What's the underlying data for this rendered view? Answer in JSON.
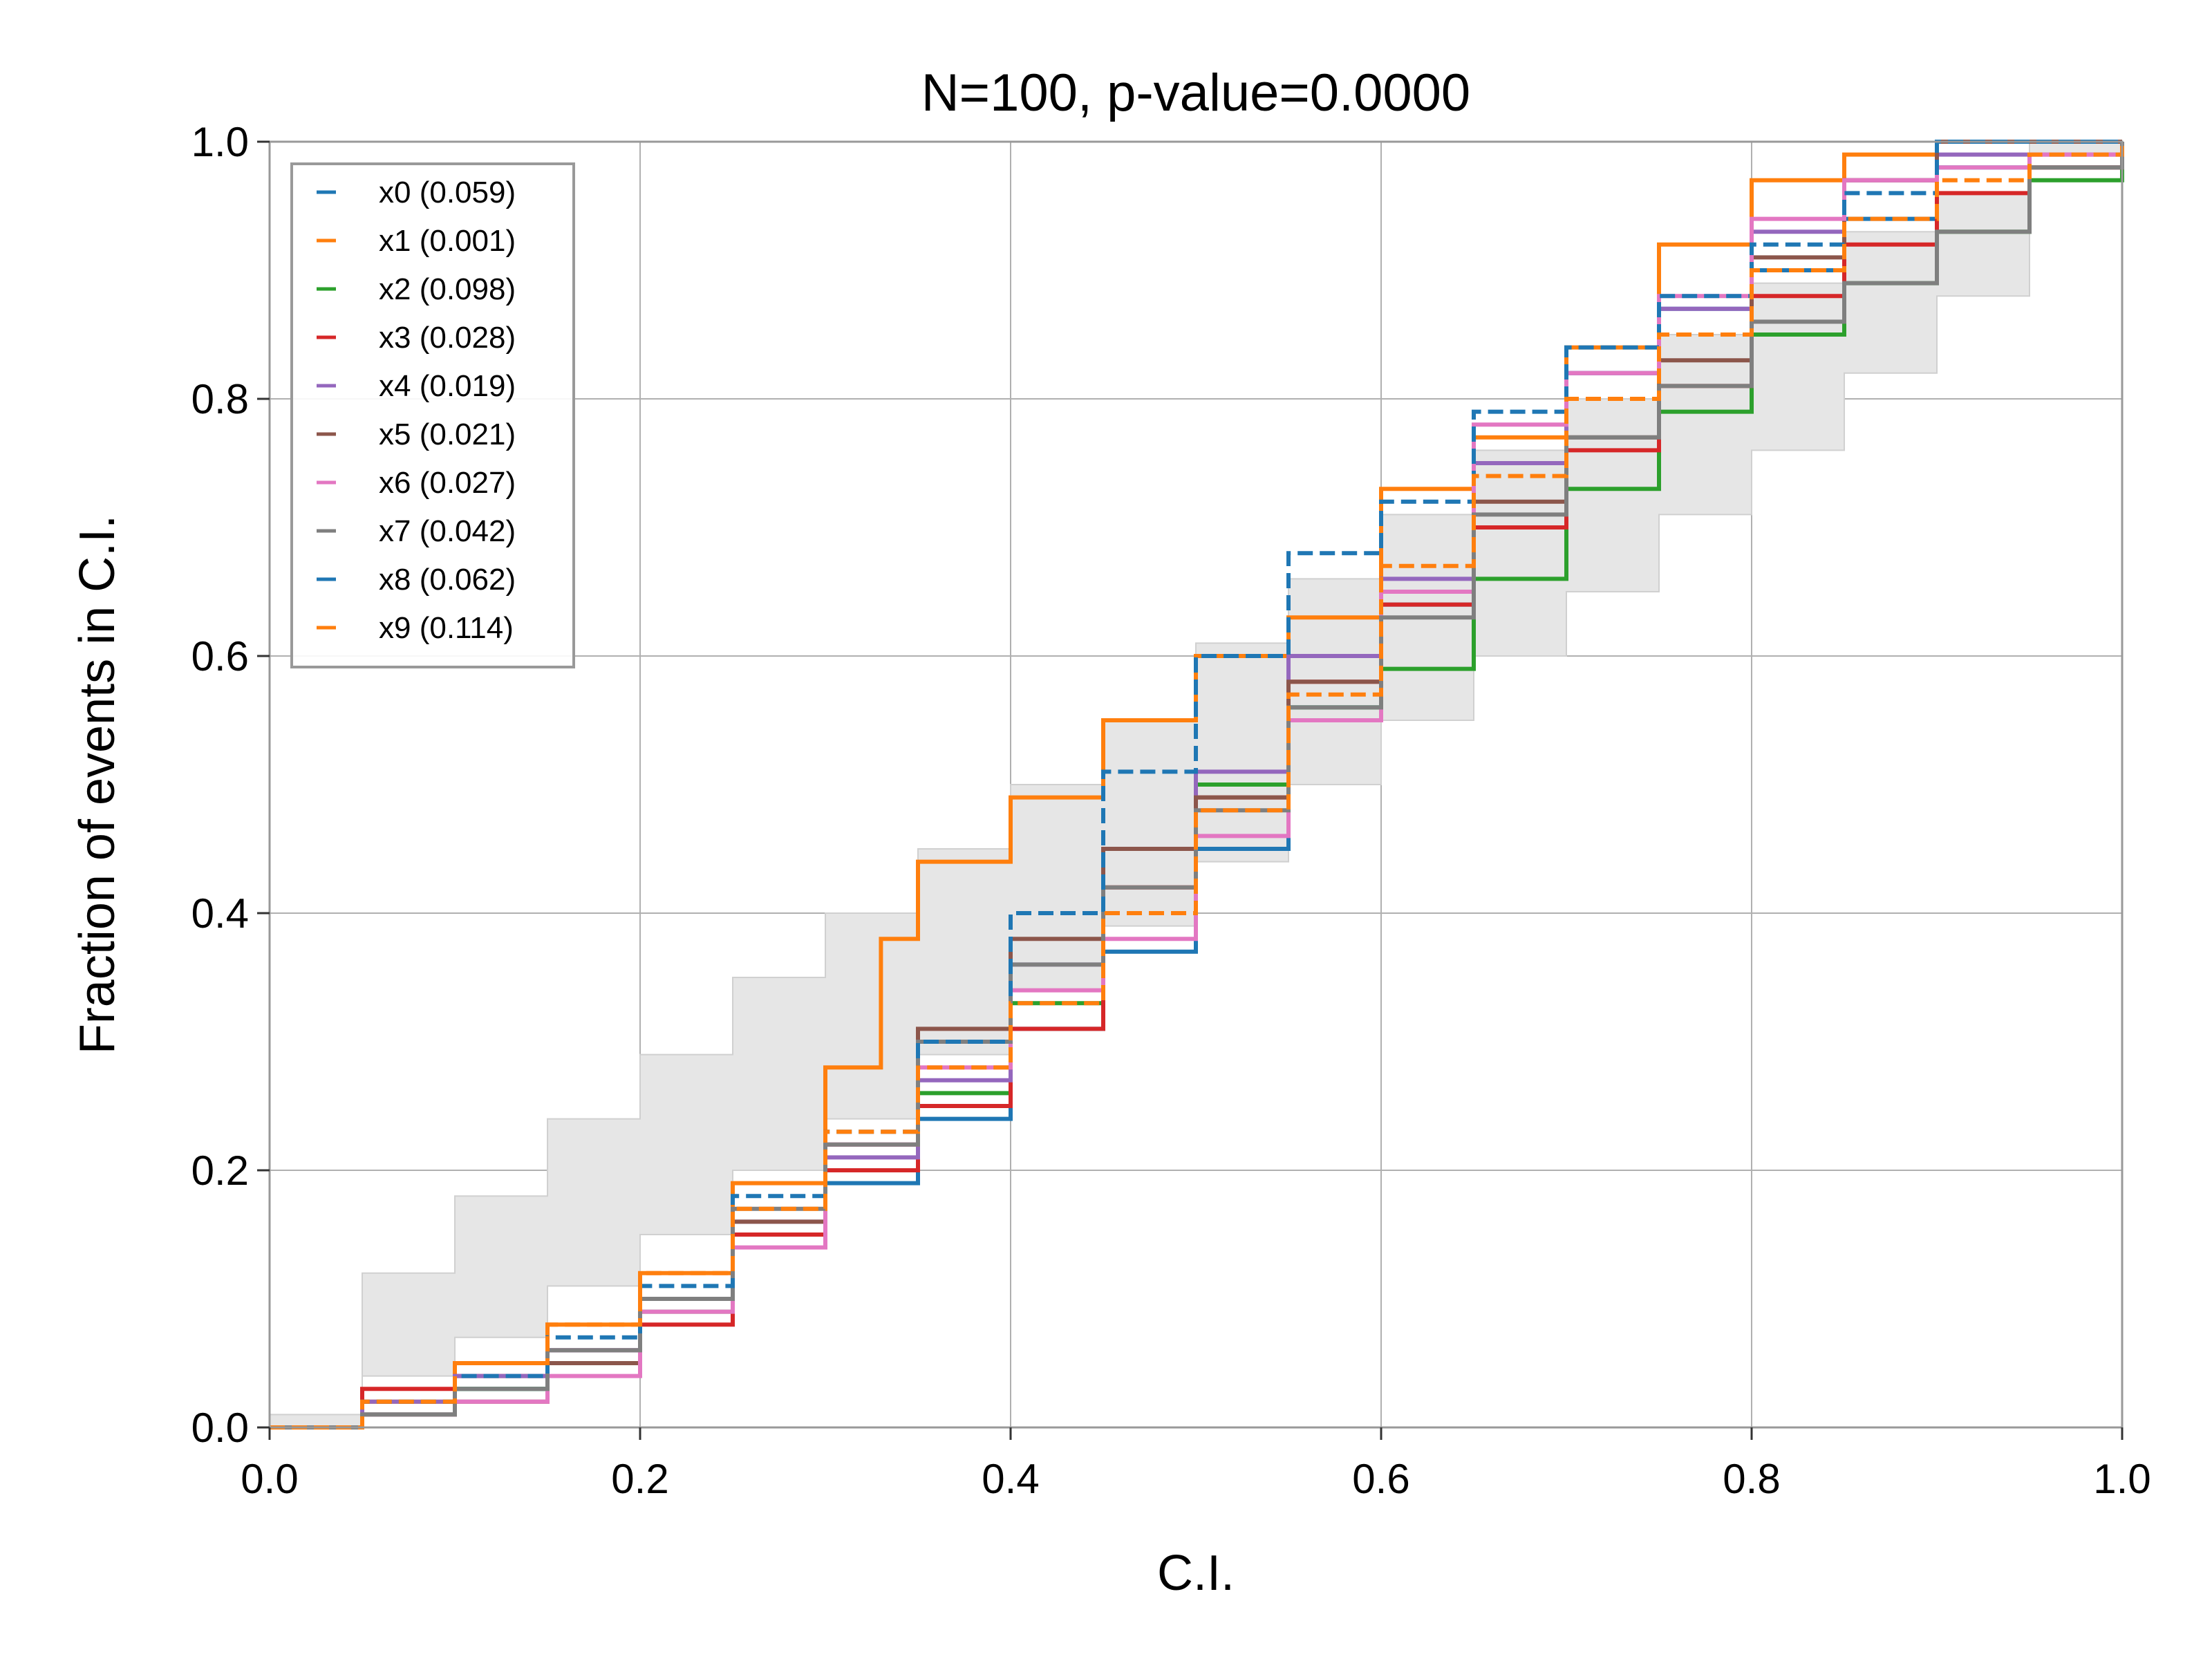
{
  "chart_data": {
    "type": "line",
    "title": "N=100, p-value=0.0000",
    "xlabel": "C.I.",
    "ylabel": "Fraction of events in C.I.",
    "xlim": [
      0,
      1
    ],
    "ylim": [
      0,
      1
    ],
    "xticks": [
      "0.0",
      "0.2",
      "0.4",
      "0.6",
      "0.8",
      "1.0"
    ],
    "yticks": [
      "0.0",
      "0.2",
      "0.4",
      "0.6",
      "0.8",
      "1.0"
    ],
    "grid": true,
    "legend_position": "top-left",
    "confidence_band": {
      "x": [
        0,
        0.05,
        0.1,
        0.15,
        0.2,
        0.25,
        0.3,
        0.35,
        0.4,
        0.45,
        0.5,
        0.55,
        0.6,
        0.65,
        0.7,
        0.75,
        0.8,
        0.85,
        0.9,
        0.95,
        1.0
      ],
      "lower": [
        0,
        0.01,
        0.04,
        0.07,
        0.11,
        0.15,
        0.2,
        0.24,
        0.29,
        0.34,
        0.39,
        0.44,
        0.5,
        0.55,
        0.6,
        0.65,
        0.71,
        0.76,
        0.82,
        0.88,
        1.0
      ],
      "upper": [
        0,
        0.12,
        0.18,
        0.24,
        0.29,
        0.35,
        0.4,
        0.45,
        0.5,
        0.55,
        0.61,
        0.66,
        0.71,
        0.76,
        0.8,
        0.85,
        0.89,
        0.93,
        0.96,
        0.99,
        1.0
      ]
    },
    "series": [
      {
        "name": "x0 (0.059)",
        "color": "#1f77b4",
        "dashed": false,
        "x": [
          0,
          0.05,
          0.1,
          0.15,
          0.2,
          0.25,
          0.3,
          0.35,
          0.4,
          0.45,
          0.5,
          0.55,
          0.6,
          0.65,
          0.7,
          0.75,
          0.8,
          0.85,
          0.9,
          1.0
        ],
        "y": [
          0,
          0.01,
          0.03,
          0.06,
          0.1,
          0.15,
          0.19,
          0.24,
          0.31,
          0.37,
          0.45,
          0.56,
          0.64,
          0.75,
          0.82,
          0.87,
          0.9,
          0.94,
          0.98,
          1.0
        ]
      },
      {
        "name": "x1 (0.001)",
        "color": "#ff7f0e",
        "dashed": false,
        "x": [
          0,
          0.05,
          0.1,
          0.15,
          0.2,
          0.25,
          0.3,
          0.33,
          0.35,
          0.4,
          0.45,
          0.5,
          0.55,
          0.6,
          0.65,
          0.7,
          0.75,
          0.8,
          0.85,
          0.9,
          1.0
        ],
        "y": [
          0,
          0.02,
          0.05,
          0.08,
          0.12,
          0.19,
          0.28,
          0.38,
          0.44,
          0.49,
          0.55,
          0.6,
          0.63,
          0.73,
          0.77,
          0.84,
          0.92,
          0.97,
          0.99,
          1.0,
          1.0
        ]
      },
      {
        "name": "x2 (0.098)",
        "color": "#2ca02c",
        "dashed": false,
        "x": [
          0,
          0.05,
          0.1,
          0.15,
          0.2,
          0.25,
          0.3,
          0.35,
          0.4,
          0.45,
          0.5,
          0.55,
          0.6,
          0.65,
          0.7,
          0.75,
          0.8,
          0.85,
          0.9,
          0.95,
          1.0
        ],
        "y": [
          0,
          0.01,
          0.03,
          0.05,
          0.09,
          0.15,
          0.2,
          0.26,
          0.33,
          0.45,
          0.5,
          0.56,
          0.59,
          0.66,
          0.73,
          0.79,
          0.85,
          0.89,
          0.93,
          0.97,
          1.0
        ]
      },
      {
        "name": "x3 (0.028)",
        "color": "#d62728",
        "dashed": false,
        "x": [
          0,
          0.05,
          0.1,
          0.15,
          0.2,
          0.25,
          0.3,
          0.35,
          0.4,
          0.45,
          0.5,
          0.55,
          0.6,
          0.65,
          0.7,
          0.75,
          0.8,
          0.85,
          0.9,
          0.95,
          1.0
        ],
        "y": [
          0,
          0.03,
          0.04,
          0.06,
          0.08,
          0.15,
          0.2,
          0.25,
          0.31,
          0.42,
          0.49,
          0.58,
          0.64,
          0.7,
          0.76,
          0.81,
          0.88,
          0.92,
          0.96,
          0.98,
          1.0
        ]
      },
      {
        "name": "x4 (0.019)",
        "color": "#9467bd",
        "dashed": false,
        "x": [
          0,
          0.05,
          0.1,
          0.15,
          0.2,
          0.25,
          0.3,
          0.35,
          0.4,
          0.45,
          0.5,
          0.55,
          0.6,
          0.65,
          0.7,
          0.75,
          0.8,
          0.85,
          0.9,
          1.0
        ],
        "y": [
          0,
          0.02,
          0.04,
          0.06,
          0.1,
          0.16,
          0.21,
          0.27,
          0.36,
          0.45,
          0.51,
          0.6,
          0.66,
          0.75,
          0.82,
          0.87,
          0.93,
          0.97,
          0.99,
          1.0
        ]
      },
      {
        "name": "x5 (0.021)",
        "color": "#8c564b",
        "dashed": false,
        "x": [
          0,
          0.05,
          0.1,
          0.15,
          0.2,
          0.25,
          0.3,
          0.35,
          0.4,
          0.45,
          0.5,
          0.55,
          0.6,
          0.65,
          0.7,
          0.75,
          0.8,
          0.85,
          0.9,
          1.0
        ],
        "y": [
          0,
          0.01,
          0.02,
          0.05,
          0.1,
          0.16,
          0.22,
          0.31,
          0.38,
          0.45,
          0.49,
          0.58,
          0.65,
          0.72,
          0.77,
          0.83,
          0.91,
          0.97,
          1.0,
          1.0
        ]
      },
      {
        "name": "x6 (0.027)",
        "color": "#e377c2",
        "dashed": false,
        "x": [
          0,
          0.05,
          0.1,
          0.15,
          0.2,
          0.25,
          0.3,
          0.35,
          0.4,
          0.45,
          0.5,
          0.55,
          0.6,
          0.65,
          0.7,
          0.75,
          0.8,
          0.85,
          0.9,
          0.95,
          1.0
        ],
        "y": [
          0,
          0.01,
          0.02,
          0.04,
          0.09,
          0.14,
          0.22,
          0.28,
          0.34,
          0.38,
          0.46,
          0.55,
          0.65,
          0.78,
          0.82,
          0.88,
          0.94,
          0.97,
          0.98,
          0.99,
          1.0
        ]
      },
      {
        "name": "x7 (0.042)",
        "color": "#7f7f7f",
        "dashed": false,
        "x": [
          0,
          0.05,
          0.1,
          0.15,
          0.2,
          0.25,
          0.3,
          0.35,
          0.4,
          0.45,
          0.5,
          0.55,
          0.6,
          0.65,
          0.7,
          0.75,
          0.8,
          0.85,
          0.9,
          0.95,
          1.0
        ],
        "y": [
          0,
          0.01,
          0.03,
          0.06,
          0.1,
          0.17,
          0.22,
          0.3,
          0.36,
          0.42,
          0.48,
          0.56,
          0.63,
          0.71,
          0.77,
          0.81,
          0.86,
          0.89,
          0.93,
          0.98,
          1.0
        ]
      },
      {
        "name": "x8 (0.062)",
        "color": "#1f77b4",
        "dashed": true,
        "x": [
          0,
          0.05,
          0.1,
          0.15,
          0.2,
          0.25,
          0.3,
          0.35,
          0.4,
          0.45,
          0.5,
          0.55,
          0.6,
          0.65,
          0.7,
          0.75,
          0.8,
          0.85,
          0.9,
          1.0
        ],
        "y": [
          0,
          0.02,
          0.04,
          0.07,
          0.11,
          0.18,
          0.23,
          0.3,
          0.4,
          0.51,
          0.6,
          0.68,
          0.72,
          0.79,
          0.84,
          0.88,
          0.92,
          0.96,
          1.0,
          1.0
        ]
      },
      {
        "name": "x9 (0.114)",
        "color": "#ff7f0e",
        "dashed": true,
        "x": [
          0,
          0.05,
          0.1,
          0.15,
          0.2,
          0.25,
          0.3,
          0.35,
          0.4,
          0.45,
          0.5,
          0.55,
          0.6,
          0.65,
          0.7,
          0.75,
          0.8,
          0.85,
          0.9,
          0.95,
          1.0
        ],
        "y": [
          0,
          0.02,
          0.05,
          0.08,
          0.12,
          0.17,
          0.23,
          0.28,
          0.33,
          0.4,
          0.48,
          0.57,
          0.67,
          0.74,
          0.8,
          0.85,
          0.9,
          0.94,
          0.97,
          0.99,
          1.0
        ]
      }
    ]
  }
}
